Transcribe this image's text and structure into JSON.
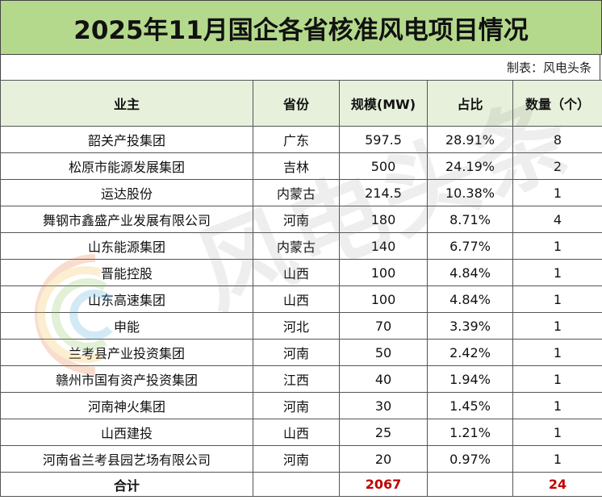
{
  "title": "2025年11月国企各省核准风电项目情况",
  "credit": "制表：风电头条",
  "watermark": "风电头条",
  "columns": [
    "业主",
    "省份",
    "规模(MW)",
    "占比",
    "数量（个）"
  ],
  "rows": [
    {
      "owner": "韶关产投集团",
      "province": "广东",
      "scale": "597.5",
      "share": "28.91%",
      "count": "8"
    },
    {
      "owner": "松原市能源发展集团",
      "province": "吉林",
      "scale": "500",
      "share": "24.19%",
      "count": "2"
    },
    {
      "owner": "运达股份",
      "province": "内蒙古",
      "scale": "214.5",
      "share": "10.38%",
      "count": "1"
    },
    {
      "owner": "舞钢市鑫盛产业发展有限公司",
      "province": "河南",
      "scale": "180",
      "share": "8.71%",
      "count": "4"
    },
    {
      "owner": "山东能源集团",
      "province": "内蒙古",
      "scale": "140",
      "share": "6.77%",
      "count": "1"
    },
    {
      "owner": "晋能控股",
      "province": "山西",
      "scale": "100",
      "share": "4.84%",
      "count": "1"
    },
    {
      "owner": "山东高速集团",
      "province": "山西",
      "scale": "100",
      "share": "4.84%",
      "count": "1"
    },
    {
      "owner": "申能",
      "province": "河北",
      "scale": "70",
      "share": "3.39%",
      "count": "1"
    },
    {
      "owner": "兰考县产业投资集团",
      "province": "河南",
      "scale": "50",
      "share": "2.42%",
      "count": "1"
    },
    {
      "owner": "赣州市国有资产投资集团",
      "province": "江西",
      "scale": "40",
      "share": "1.94%",
      "count": "1"
    },
    {
      "owner": "河南神火集团",
      "province": "河南",
      "scale": "30",
      "share": "1.45%",
      "count": "1"
    },
    {
      "owner": "山西建投",
      "province": "山西",
      "scale": "25",
      "share": "1.21%",
      "count": "1"
    },
    {
      "owner": "河南省兰考县园艺场有限公司",
      "province": "河南",
      "scale": "20",
      "share": "0.97%",
      "count": "1"
    }
  ],
  "total": {
    "label": "合计",
    "scale": "2067",
    "count": "24"
  },
  "colors": {
    "header": "#b4d98c",
    "column_header": "#e6f0db",
    "total_red": "#c00000"
  }
}
